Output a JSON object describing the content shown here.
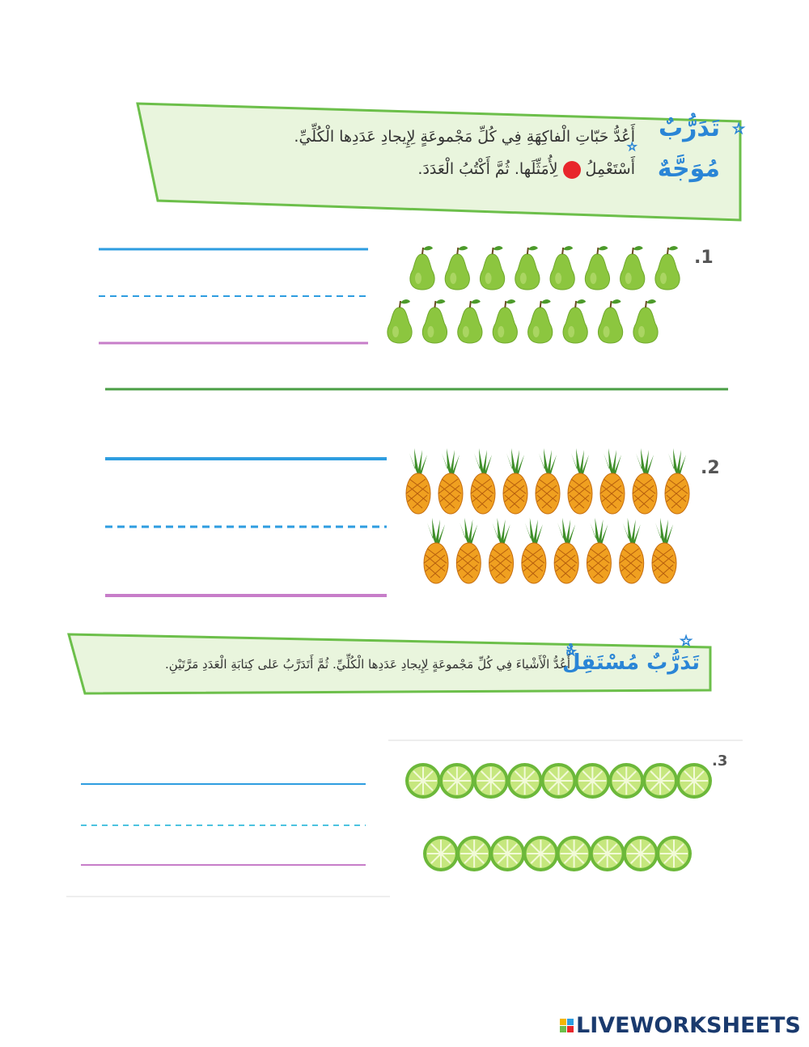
{
  "header": {
    "title_line1": "تَدَرُّبٌ",
    "title_line2": "مُوَجَّهٌ",
    "instruction_line1": "أَعُدُّ حَبّاتِ الْفاكِهَةِ فِي كُلِّ مَجْموعَةٍ لِإِيجادِ عَدَدِها الْكُلِّيِّ.",
    "instruction_line2_before": "أَسْتَعْمِلُ",
    "instruction_line2_after": "لِأُمَثِّلَها. ثُمَّ أَكْتُبُ الْعَدَدَ."
  },
  "items": [
    {
      "label": ".1"
    },
    {
      "label": ".2"
    },
    {
      "label": ".3"
    }
  ],
  "section2": {
    "title": "تَدَرُّبٌ مُسْتَقِلٌّ",
    "instruction": "أَعُدُّ الْأَشْياءَ فِي كُلِّ مَجْموعَةٍ لِإِيجادِ عَدَدِها الْكُلِّيِّ. ثُمَّ أَتَدَرَّبُ عَلى كِتابَةِ الْعَدَدِ مَرَّتَيْنِ."
  },
  "footer": {
    "logo": "LIVEWORKSHEETS"
  }
}
